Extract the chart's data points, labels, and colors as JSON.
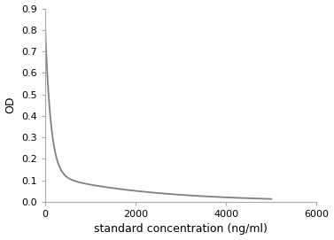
{
  "title": "",
  "xlabel": "standard concentration (ng/ml)",
  "ylabel": "OD",
  "xlim": [
    0,
    6000
  ],
  "ylim": [
    0,
    0.9
  ],
  "xticks": [
    0,
    2000,
    4000,
    6000
  ],
  "yticks": [
    0,
    0.1,
    0.2,
    0.3,
    0.4,
    0.5,
    0.6,
    0.7,
    0.8,
    0.9
  ],
  "line_color": "#808080",
  "line_width": 1.3,
  "background_color": "#ffffff",
  "curve_params": {
    "A1": 0.7,
    "k1": 0.008,
    "A2": 0.125,
    "k2": 0.00045,
    "B": 0.0
  }
}
